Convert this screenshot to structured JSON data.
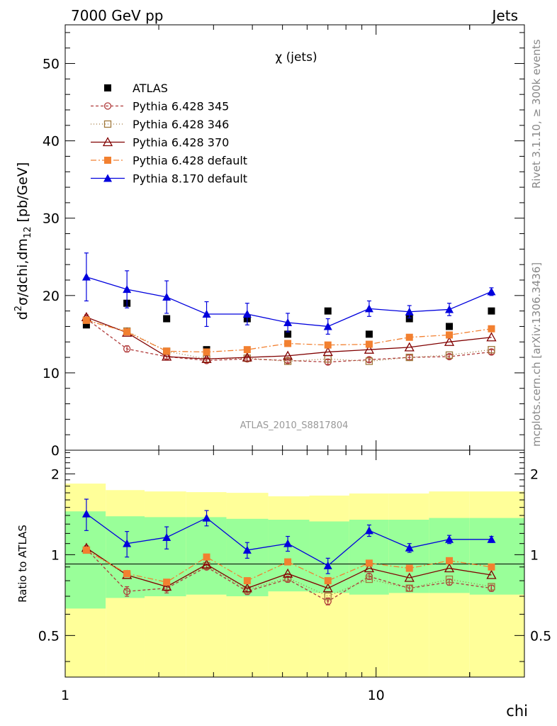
{
  "header": {
    "left_label": "7000 GeV pp",
    "right_label": "Jets",
    "plot_title": "χ (jets)",
    "watermark": "ATLAS_2010_S8817804",
    "side_note_top": "Rivet 3.1.10, ≥ 300k events",
    "side_note_bottom": "mcplots.cern.ch [arXiv:1306.3436]"
  },
  "chart_data": [
    {
      "type": "line",
      "title": "χ (jets)",
      "xlabel": "chi",
      "ylabel": "d²σ/dchi,dm₁₂ [pb/GeV]",
      "ylabel_parts": {
        "d": "d",
        "sup": "2",
        "mid": "σ/dchi,dm",
        "sub": "12",
        "end": " [pb/GeV]"
      },
      "x_scale": "log",
      "xlim": [
        1,
        30
      ],
      "ylim": [
        0,
        55
      ],
      "x_ticks": [
        1,
        10
      ],
      "y_ticks": [
        0,
        10,
        20,
        30,
        40,
        50
      ],
      "y_tick_labels": [
        "0",
        "10",
        "20",
        "30",
        "40",
        "50"
      ],
      "legend_position": "top-left",
      "x": [
        1.17,
        1.58,
        2.12,
        2.85,
        3.85,
        5.2,
        7.0,
        9.5,
        12.8,
        17.2,
        23.5
      ],
      "series": [
        {
          "name": "ATLAS",
          "color": "#000000",
          "marker": "square-filled",
          "dash": "",
          "values": [
            16.2,
            19.0,
            17.0,
            13.0,
            17.0,
            15.0,
            18.0,
            15.0,
            17.0,
            16.0,
            18.0
          ]
        },
        {
          "name": "Pythia 6.428 345",
          "color": "#b03a3a",
          "marker": "circle-open",
          "dash": "4,3",
          "values": [
            17.0,
            13.1,
            12.1,
            11.6,
            11.8,
            11.6,
            11.4,
            11.7,
            12.0,
            12.1,
            12.7
          ],
          "err": [
            0.5,
            0.4,
            0.3,
            0.3,
            0.3,
            0.3,
            0.3,
            0.3,
            0.3,
            0.3,
            0.3
          ]
        },
        {
          "name": "Pythia 6.428 346",
          "color": "#a0783c",
          "marker": "square-open",
          "dash": "1,3",
          "values": [
            16.8,
            15.4,
            12.8,
            11.8,
            11.9,
            11.5,
            11.8,
            11.5,
            12.0,
            12.3,
            13.0
          ]
        },
        {
          "name": "Pythia 6.428 370",
          "color": "#800000",
          "marker": "triangle-open",
          "dash": "",
          "values": [
            17.2,
            15.2,
            12.1,
            11.8,
            12.0,
            12.2,
            12.7,
            13.0,
            13.3,
            14.0,
            14.6
          ]
        },
        {
          "name": "Pythia 6.428 default",
          "color": "#f28030",
          "marker": "square-filled",
          "dash": "8,3,2,3",
          "values": [
            16.8,
            15.3,
            12.8,
            12.7,
            13.0,
            13.8,
            13.6,
            13.7,
            14.6,
            14.9,
            15.7
          ]
        },
        {
          "name": "Pythia 8.170 default",
          "color": "#0000dd",
          "marker": "triangle-filled",
          "dash": "",
          "values": [
            22.4,
            20.8,
            19.8,
            17.6,
            17.6,
            16.5,
            16.0,
            18.3,
            17.9,
            18.2,
            20.5
          ],
          "err": [
            3.1,
            2.4,
            2.1,
            1.6,
            1.4,
            1.2,
            1.0,
            1.0,
            0.8,
            0.8,
            0.5
          ]
        }
      ]
    },
    {
      "type": "line",
      "xlabel": "chi",
      "ylabel": "Ratio to ATLAS",
      "x_scale": "log",
      "y_scale": "log",
      "xlim": [
        1,
        30
      ],
      "ylim": [
        0.35,
        2.45
      ],
      "y_ticks": [
        0.5,
        1,
        2
      ],
      "y_tick_labels": [
        "0.5",
        "1",
        "2"
      ],
      "x_tick_labels": [
        "1",
        "10"
      ],
      "reference_line": 1,
      "bands": {
        "x_edges": [
          1.0,
          1.35,
          1.8,
          2.45,
          3.3,
          4.5,
          6.1,
          8.2,
          11.0,
          14.8,
          20.0,
          30.0
        ],
        "yellow_color": "#ffff99",
        "green_color": "#99ff99",
        "yellow_low": [
          0.34,
          0.34,
          0.34,
          0.34,
          0.34,
          0.34,
          0.34,
          0.34,
          0.34,
          0.34,
          0.34
        ],
        "yellow_high": [
          1.84,
          1.74,
          1.72,
          1.71,
          1.7,
          1.65,
          1.66,
          1.69,
          1.69,
          1.72,
          1.72
        ],
        "green_low": [
          0.63,
          0.69,
          0.7,
          0.71,
          0.7,
          0.73,
          0.72,
          0.71,
          0.72,
          0.72,
          0.71
        ],
        "green_high": [
          1.45,
          1.39,
          1.38,
          1.38,
          1.36,
          1.35,
          1.33,
          1.35,
          1.35,
          1.37,
          1.37
        ]
      },
      "x": [
        1.17,
        1.58,
        2.12,
        2.85,
        3.85,
        5.2,
        7.0,
        9.5,
        12.8,
        17.2,
        23.5
      ],
      "series": [
        {
          "name": "Pythia 6.428 345",
          "color": "#b03a3a",
          "marker": "circle-open",
          "dash": "4,3",
          "values": [
            1.05,
            0.73,
            0.75,
            0.9,
            0.73,
            0.81,
            0.67,
            0.83,
            0.75,
            0.79,
            0.75
          ],
          "err": [
            0.03,
            0.03,
            0.03,
            0.02,
            0.02,
            0.02,
            0.02,
            0.02,
            0.02,
            0.02,
            0.02
          ]
        },
        {
          "name": "Pythia 6.428 346",
          "color": "#a0783c",
          "marker": "square-open",
          "dash": "1,3",
          "values": [
            1.04,
            0.84,
            0.76,
            0.91,
            0.74,
            0.82,
            0.7,
            0.81,
            0.75,
            0.81,
            0.76
          ]
        },
        {
          "name": "Pythia 6.428 370",
          "color": "#800000",
          "marker": "triangle-open",
          "dash": "",
          "values": [
            1.06,
            0.84,
            0.76,
            0.92,
            0.75,
            0.85,
            0.75,
            0.89,
            0.82,
            0.89,
            0.84
          ]
        },
        {
          "name": "Pythia 6.428 default",
          "color": "#f28030",
          "marker": "square-filled",
          "dash": "8,3,2,3",
          "values": [
            1.04,
            0.85,
            0.79,
            0.98,
            0.8,
            0.94,
            0.8,
            0.93,
            0.89,
            0.95,
            0.9
          ]
        },
        {
          "name": "Pythia 8.170 default",
          "color": "#0000dd",
          "marker": "triangle-filled",
          "dash": "",
          "values": [
            1.42,
            1.1,
            1.16,
            1.37,
            1.04,
            1.1,
            0.91,
            1.23,
            1.06,
            1.14,
            1.14
          ],
          "err": [
            0.19,
            0.12,
            0.11,
            0.09,
            0.07,
            0.07,
            0.06,
            0.06,
            0.04,
            0.04,
            0.03
          ]
        }
      ]
    }
  ]
}
